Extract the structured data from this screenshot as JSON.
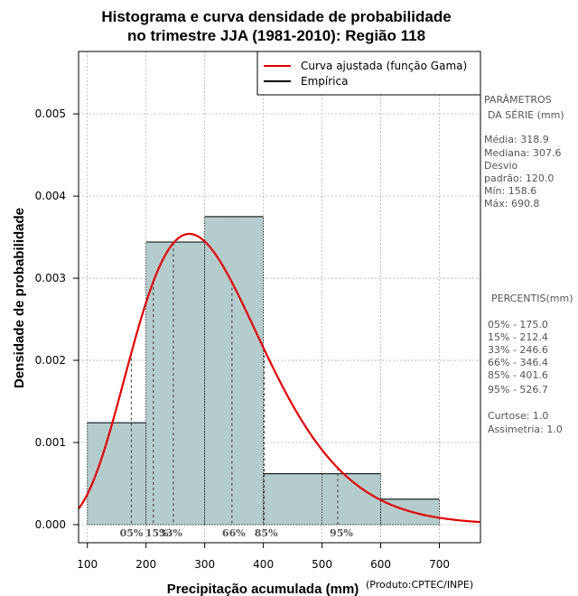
{
  "chart_data": {
    "type": "histogram",
    "title_line1": "Histograma e curva densidade de probabilidade",
    "title_line2": "no trimestre JJA (1981-2010): Região 118",
    "xlabel": "Precipitação acumulada (mm)",
    "ylabel": "Densidade de probabilidade",
    "credit": "(Produto:CPTEC/INPE)",
    "xlim": [
      85,
      770
    ],
    "ylim": [
      -0.00022,
      0.00576
    ],
    "x_ticks": [
      100,
      200,
      300,
      400,
      500,
      600,
      700
    ],
    "y_ticks": [
      "0.000",
      "0.001",
      "0.002",
      "0.003",
      "0.004",
      "0.005"
    ],
    "bins": [
      {
        "x0": 100,
        "x1": 200,
        "density": 0.00124
      },
      {
        "x0": 200,
        "x1": 300,
        "density": 0.00344
      },
      {
        "x0": 300,
        "x1": 400,
        "density": 0.00375
      },
      {
        "x0": 400,
        "x1": 600,
        "density": 0.00062
      },
      {
        "x0": 600,
        "x1": 700,
        "density": 0.00031
      }
    ],
    "bin_interior_lines": [
      500
    ],
    "gamma_fit": {
      "mean": 318.9,
      "sd": 120.0
    },
    "percentile_marks": [
      {
        "label": "05%",
        "value": 175.0
      },
      {
        "label": "15%",
        "value": 212.4
      },
      {
        "label": "33%",
        "value": 246.6
      },
      {
        "label": "66%",
        "value": 346.4
      },
      {
        "label": "85%",
        "value": 401.6
      },
      {
        "label": "95%",
        "value": 526.7
      }
    ],
    "legend": [
      {
        "label": "Curva ajustada (função Gama)",
        "color": "#e00000"
      },
      {
        "label": "Empírica",
        "color": "#000000"
      }
    ],
    "colors": {
      "bar_fill": "#b5cccc",
      "curve": "#e00000",
      "grid": "#b4b4b4",
      "side_text": "#555555"
    }
  },
  "side_panel": {
    "params_title_1": "PARÂMETROS",
    "params_title_2": "DA SÉRIE (mm)",
    "media": "Média:  318.9",
    "mediana": "Mediana:  307.6",
    "desvio_1": "Desvio",
    "desvio_2": "padrão:  120.0",
    "min": "Mín:  158.6",
    "max": "Máx:  690.8",
    "percentis_title": "PERCENTIS(mm)",
    "p05": "05% -  175.0",
    "p15": "15% -  212.4",
    "p33": "33% -  246.6",
    "p66": "66% -  346.4",
    "p85": "85% -  401.6",
    "p95": "95% -  526.7",
    "curtose": "Curtose:  1.0",
    "assimetria": "Assimetria:  1.0"
  }
}
